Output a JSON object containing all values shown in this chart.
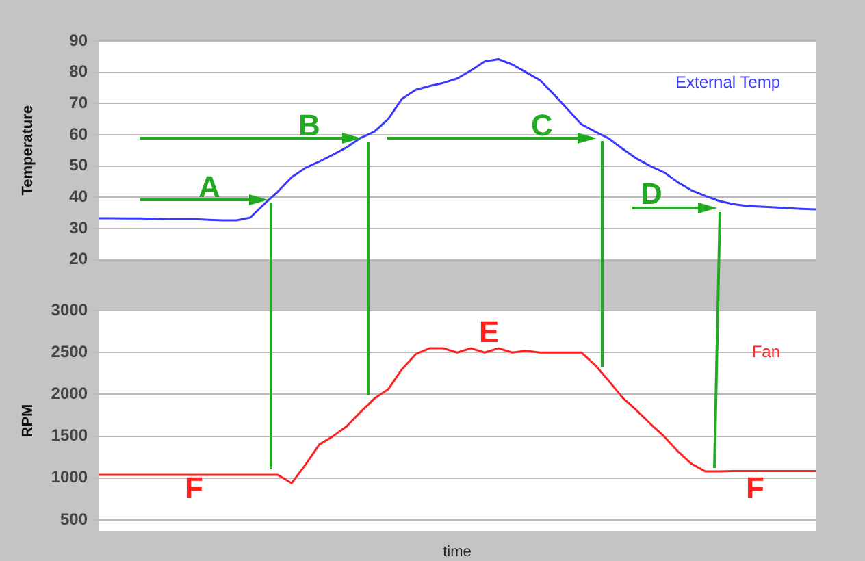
{
  "chart_data": [
    {
      "type": "line",
      "ylabel": "Temperature",
      "categories": [
        null,
        null,
        null,
        null,
        null,
        null,
        null,
        null,
        null,
        null,
        null,
        null,
        null,
        null,
        null,
        null,
        null,
        null,
        null,
        null,
        null,
        null,
        null,
        null,
        null,
        null,
        null,
        null,
        null,
        null,
        null,
        null,
        null,
        null,
        null,
        null,
        null,
        null,
        null,
        null,
        null,
        null,
        null,
        null,
        null,
        null,
        null,
        null,
        null,
        null,
        null,
        null,
        null
      ],
      "series": [
        {
          "name": "External Temp",
          "color": "#3a3aff",
          "values": [
            33.3,
            33.3,
            33.2,
            33.2,
            33.1,
            33,
            33,
            33,
            32.8,
            32.6,
            32.6,
            33.5,
            37.8,
            41.8,
            46.4,
            49.4,
            51.4,
            53.6,
            56,
            59,
            61,
            65,
            71.5,
            74.4,
            75.6,
            76.6,
            78,
            80.6,
            83.5,
            84.2,
            82.5,
            80,
            77.5,
            73,
            68.2,
            63.4,
            61,
            58.8,
            55.5,
            52.4,
            50,
            48,
            44.8,
            42.2,
            40.4,
            38.8,
            37.8,
            37.2,
            37,
            36.8,
            36.5,
            36.3,
            36.1
          ]
        }
      ],
      "ylim": [
        20,
        90
      ],
      "yticks": [
        20,
        30,
        40,
        50,
        60,
        70,
        80,
        90
      ],
      "grid": "y",
      "legend": false,
      "marker": "none",
      "tick_labels": "y",
      "annotations": [
        "A",
        "B",
        "C",
        "D"
      ]
    },
    {
      "type": "line",
      "xlabel": "time",
      "ylabel": "RPM",
      "categories": [
        null,
        null,
        null,
        null,
        null,
        null,
        null,
        null,
        null,
        null,
        null,
        null,
        null,
        null,
        null,
        null,
        null,
        null,
        null,
        null,
        null,
        null,
        null,
        null,
        null,
        null,
        null,
        null,
        null,
        null,
        null,
        null,
        null,
        null,
        null,
        null,
        null,
        null,
        null,
        null,
        null,
        null,
        null,
        null,
        null,
        null,
        null,
        null,
        null,
        null,
        null,
        null,
        null
      ],
      "series": [
        {
          "name": "Fan",
          "color": "#ff2020",
          "values": [
            1040,
            1040,
            1040,
            1040,
            1040,
            1040,
            1040,
            1040,
            1040,
            1040,
            1040,
            1040,
            1040,
            1040,
            940,
            1160,
            1400,
            1500,
            1620,
            1790,
            1950,
            2060,
            2300,
            2480,
            2550,
            2550,
            2500,
            2550,
            2500,
            2550,
            2500,
            2520,
            2500,
            2500,
            2500,
            2500,
            2350,
            2160,
            1960,
            1810,
            1650,
            1500,
            1320,
            1170,
            1080,
            1080,
            1085,
            1085,
            1085,
            1085,
            1085,
            1085,
            1085
          ]
        }
      ],
      "ylim": [
        370,
        3000
      ],
      "yticks": [
        500,
        1000,
        1500,
        2000,
        2500,
        3000
      ],
      "grid": "y",
      "legend": false,
      "marker": "none",
      "tick_labels": "y",
      "annotations": [
        "E",
        "F",
        "F"
      ]
    }
  ]
}
